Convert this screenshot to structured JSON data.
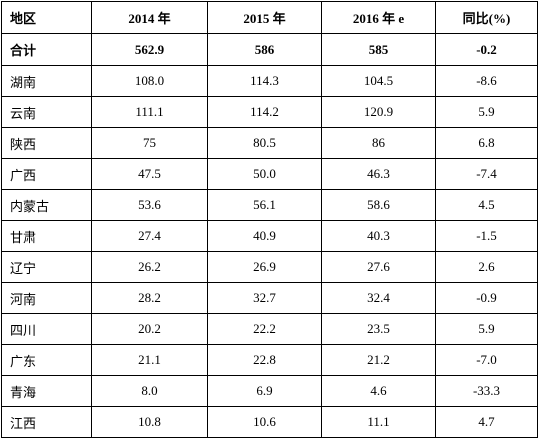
{
  "table": {
    "headers": [
      "地区",
      "2014 年",
      "2015 年",
      "2016 年 e",
      "同比(%)"
    ],
    "total": [
      "合计",
      "562.9",
      "586",
      "585",
      "-0.2"
    ],
    "rows": [
      [
        "湖南",
        "108.0",
        "114.3",
        "104.5",
        "-8.6"
      ],
      [
        "云南",
        "111.1",
        "114.2",
        "120.9",
        "5.9"
      ],
      [
        "陕西",
        "75",
        "80.5",
        "86",
        "6.8"
      ],
      [
        "广西",
        "47.5",
        "50.0",
        "46.3",
        "-7.4"
      ],
      [
        "内蒙古",
        "53.6",
        "56.1",
        "58.6",
        "4.5"
      ],
      [
        "甘肃",
        "27.4",
        "40.9",
        "40.3",
        "-1.5"
      ],
      [
        "辽宁",
        "26.2",
        "26.9",
        "27.6",
        "2.6"
      ],
      [
        "河南",
        "28.2",
        "32.7",
        "32.4",
        "-0.9"
      ],
      [
        "四川",
        "20.2",
        "22.2",
        "23.5",
        "5.9"
      ],
      [
        "广东",
        "21.1",
        "22.8",
        "21.2",
        "-7.0"
      ],
      [
        "青海",
        "8.0",
        "6.9",
        "4.6",
        "-33.3"
      ],
      [
        "江西",
        "10.8",
        "10.6",
        "11.1",
        "4.7"
      ]
    ]
  }
}
